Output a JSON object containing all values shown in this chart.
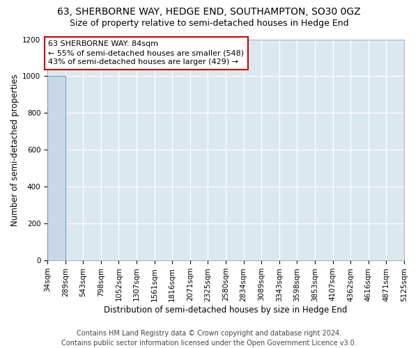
{
  "title_line1": "63, SHERBORNE WAY, HEDGE END, SOUTHAMPTON, SO30 0GZ",
  "title_line2": "Size of property relative to semi-detached houses in Hedge End",
  "xlabel": "Distribution of semi-detached houses by size in Hedge End",
  "ylabel": "Number of semi-detached properties",
  "footer_line1": "Contains HM Land Registry data © Crown copyright and database right 2024.",
  "footer_line2": "Contains public sector information licensed under the Open Government Licence v3.0.",
  "annotation_line1": "63 SHERBORNE WAY: 84sqm",
  "annotation_line2": "← 55% of semi-detached houses are smaller (548)",
  "annotation_line3": "43% of semi-detached houses are larger (429) →",
  "bin_edges": [
    34,
    289,
    543,
    798,
    1052,
    1307,
    1561,
    1816,
    2071,
    2325,
    2580,
    2834,
    3089,
    3343,
    3598,
    3853,
    4107,
    4362,
    4616,
    4871,
    5125
  ],
  "bar_heights": [
    1000,
    0,
    0,
    0,
    0,
    0,
    0,
    0,
    0,
    0,
    0,
    0,
    0,
    0,
    0,
    0,
    0,
    0,
    0,
    0
  ],
  "bar_color": "#c8d8e8",
  "bar_edge_color": "#6699bb",
  "ylim": [
    0,
    1200
  ],
  "yticks": [
    0,
    200,
    400,
    600,
    800,
    1000,
    1200
  ],
  "annotation_box_facecolor": "#ffffff",
  "annotation_box_edgecolor": "#cc0000",
  "plot_bg_color": "#dce8f0",
  "grid_color": "#ffffff",
  "fig_bg_color": "#ffffff",
  "title_fontsize": 10,
  "subtitle_fontsize": 9,
  "axis_label_fontsize": 8.5,
  "tick_fontsize": 7.5,
  "annotation_fontsize": 8,
  "footer_fontsize": 7
}
